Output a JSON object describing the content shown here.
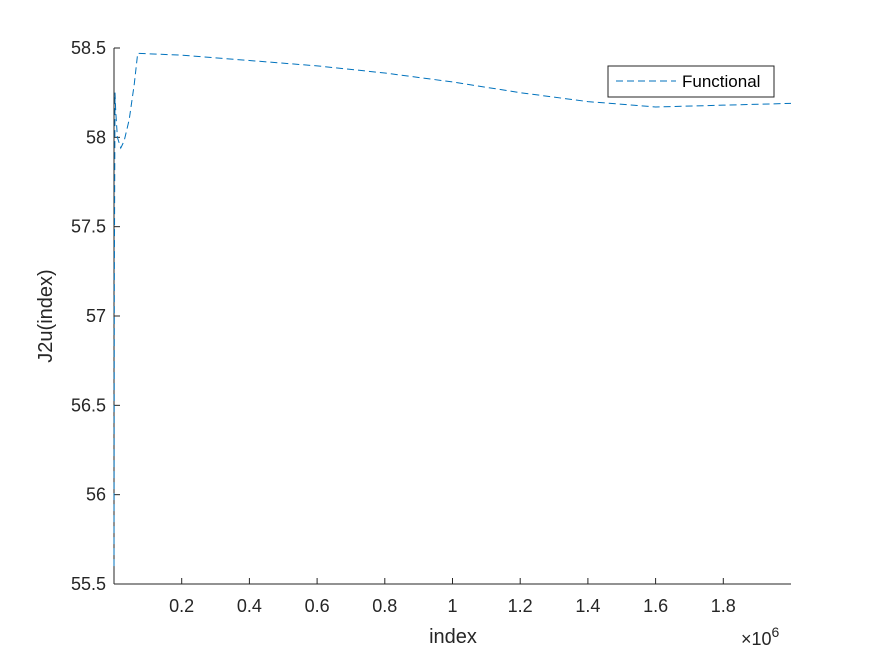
{
  "chart_data": {
    "type": "line",
    "title": "",
    "xlabel": "index",
    "ylabel": "J2u(index)",
    "xlim": [
      0,
      2000000
    ],
    "ylim": [
      55.5,
      58.5
    ],
    "x_exponent_label": "×10",
    "x_exponent": "6",
    "x_ticks": [
      200000,
      400000,
      600000,
      800000,
      1000000,
      1200000,
      1400000,
      1600000,
      1800000
    ],
    "x_tick_labels": [
      "0.2",
      "0.4",
      "0.6",
      "0.8",
      "1",
      "1.2",
      "1.4",
      "1.6",
      "1.8"
    ],
    "y_ticks": [
      55.5,
      56,
      56.5,
      57,
      57.5,
      58,
      58.5
    ],
    "y_tick_labels": [
      "55.5",
      "56",
      "56.5",
      "57",
      "57.5",
      "58",
      "58.5"
    ],
    "grid": false,
    "legend_position": "top-right",
    "series": [
      {
        "name": "Functional",
        "color": "#0072BD",
        "line_style": "dashed",
        "x": [
          0,
          1000,
          3000,
          5000,
          10000,
          20000,
          30000,
          45000,
          60000,
          70000,
          200000,
          400000,
          600000,
          800000,
          1000000,
          1200000,
          1400000,
          1600000,
          1800000,
          2000000
        ],
        "y": [
          55.6,
          57.2,
          58.25,
          58.15,
          58.0,
          57.94,
          57.98,
          58.1,
          58.3,
          58.47,
          58.46,
          58.43,
          58.4,
          58.36,
          58.31,
          58.25,
          58.2,
          58.17,
          58.18,
          58.19
        ]
      }
    ]
  }
}
